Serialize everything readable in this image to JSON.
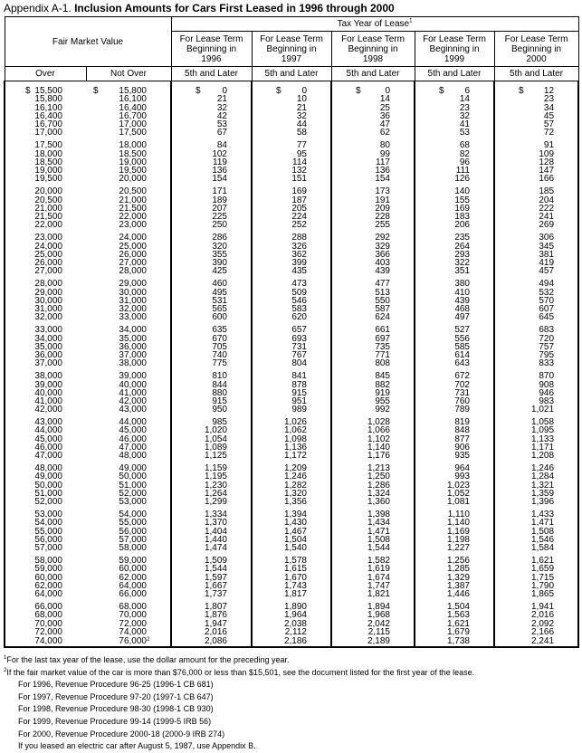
{
  "title": {
    "prefix": "Appendix A-1.",
    "main": "Inclusion Amounts for Cars First Leased in 1996 through 2000"
  },
  "header": {
    "fmv": "Fair Market Value",
    "tax_year": "Tax Year of Lease",
    "tax_year_note": "1",
    "over": "Over",
    "not_over": "Not Over",
    "columns": [
      {
        "line1": "For Lease Term",
        "line2": "Beginning in",
        "year": "1996",
        "sub": "5th and Later"
      },
      {
        "line1": "For Lease Term",
        "line2": "Beginning in",
        "year": "1997",
        "sub": "5th and Later"
      },
      {
        "line1": "For Lease Term",
        "line2": "Beginning in",
        "year": "1998",
        "sub": "5th and Later"
      },
      {
        "line1": "For Lease Term",
        "line2": "Beginning in",
        "year": "1999",
        "sub": "5th and Later"
      },
      {
        "line1": "For Lease Term",
        "line2": "Beginning in",
        "year": "2000",
        "sub": "5th and Later"
      }
    ]
  },
  "currency_symbol": "$",
  "last_row_note": "2",
  "groups": [
    [
      [
        "15,500",
        "15,800",
        "0",
        "0",
        "0",
        "6",
        "12"
      ],
      [
        "15,800",
        "16,100",
        "21",
        "10",
        "14",
        "14",
        "23"
      ],
      [
        "16,100",
        "16,400",
        "32",
        "21",
        "25",
        "23",
        "34"
      ],
      [
        "16,400",
        "16,700",
        "42",
        "32",
        "36",
        "32",
        "45"
      ],
      [
        "16,700",
        "17,000",
        "53",
        "44",
        "47",
        "41",
        "57"
      ],
      [
        "17,000",
        "17,500",
        "67",
        "58",
        "62",
        "53",
        "72"
      ]
    ],
    [
      [
        "17,500",
        "18,000",
        "84",
        "77",
        "80",
        "68",
        "91"
      ],
      [
        "18,000",
        "18,500",
        "102",
        "95",
        "99",
        "82",
        "109"
      ],
      [
        "18,500",
        "19,000",
        "119",
        "114",
        "117",
        "96",
        "128"
      ],
      [
        "19,000",
        "19,500",
        "136",
        "132",
        "136",
        "111",
        "147"
      ],
      [
        "19,500",
        "20,000",
        "154",
        "151",
        "154",
        "126",
        "166"
      ]
    ],
    [
      [
        "20,000",
        "20,500",
        "171",
        "169",
        "173",
        "140",
        "185"
      ],
      [
        "20,500",
        "21,000",
        "189",
        "187",
        "191",
        "155",
        "204"
      ],
      [
        "21,000",
        "21,500",
        "207",
        "205",
        "209",
        "169",
        "222"
      ],
      [
        "21,500",
        "22,000",
        "225",
        "224",
        "228",
        "183",
        "241"
      ],
      [
        "22,000",
        "23,000",
        "250",
        "252",
        "255",
        "206",
        "269"
      ]
    ],
    [
      [
        "23,000",
        "24,000",
        "286",
        "288",
        "292",
        "235",
        "306"
      ],
      [
        "24,000",
        "25,000",
        "320",
        "326",
        "329",
        "264",
        "345"
      ],
      [
        "25,000",
        "26,000",
        "355",
        "362",
        "366",
        "293",
        "381"
      ],
      [
        "26,000",
        "27,000",
        "390",
        "399",
        "403",
        "322",
        "419"
      ],
      [
        "27,000",
        "28,000",
        "425",
        "435",
        "439",
        "351",
        "457"
      ]
    ],
    [
      [
        "28,000",
        "29,000",
        "460",
        "473",
        "477",
        "380",
        "494"
      ],
      [
        "29,000",
        "30,000",
        "495",
        "509",
        "513",
        "410",
        "532"
      ],
      [
        "30,000",
        "31,000",
        "531",
        "546",
        "550",
        "439",
        "570"
      ],
      [
        "31,000",
        "32,000",
        "565",
        "583",
        "587",
        "468",
        "607"
      ],
      [
        "32,000",
        "33,000",
        "600",
        "620",
        "624",
        "497",
        "645"
      ]
    ],
    [
      [
        "33,000",
        "34,000",
        "635",
        "657",
        "661",
        "527",
        "683"
      ],
      [
        "34,000",
        "35,000",
        "670",
        "693",
        "697",
        "556",
        "720"
      ],
      [
        "35,000",
        "36,000",
        "705",
        "731",
        "735",
        "585",
        "757"
      ],
      [
        "36,000",
        "37,000",
        "740",
        "767",
        "771",
        "614",
        "795"
      ],
      [
        "37,000",
        "38,000",
        "775",
        "804",
        "808",
        "643",
        "833"
      ]
    ],
    [
      [
        "38,000",
        "39,000",
        "810",
        "841",
        "845",
        "672",
        "870"
      ],
      [
        "39,000",
        "40,000",
        "844",
        "878",
        "882",
        "702",
        "908"
      ],
      [
        "40,000",
        "41,000",
        "880",
        "915",
        "919",
        "731",
        "946"
      ],
      [
        "41,000",
        "42,000",
        "915",
        "951",
        "955",
        "760",
        "983"
      ],
      [
        "42,000",
        "43,000",
        "950",
        "989",
        "992",
        "789",
        "1,021"
      ]
    ],
    [
      [
        "43,000",
        "44,000",
        "985",
        "1,026",
        "1,028",
        "819",
        "1,058"
      ],
      [
        "44,000",
        "45,000",
        "1,020",
        "1,062",
        "1,066",
        "848",
        "1,095"
      ],
      [
        "45,000",
        "46,000",
        "1,054",
        "1,098",
        "1,102",
        "877",
        "1,133"
      ],
      [
        "46,000",
        "47,000",
        "1,089",
        "1,136",
        "1,140",
        "906",
        "1,171"
      ],
      [
        "47,000",
        "48,000",
        "1,125",
        "1,172",
        "1,176",
        "935",
        "1,208"
      ]
    ],
    [
      [
        "48,000",
        "49,000",
        "1,159",
        "1,209",
        "1,213",
        "964",
        "1,246"
      ],
      [
        "49,000",
        "50,000",
        "1,195",
        "1,246",
        "1,250",
        "993",
        "1,284"
      ],
      [
        "50,000",
        "51,000",
        "1,230",
        "1,282",
        "1,286",
        "1,023",
        "1,321"
      ],
      [
        "51,000",
        "52,000",
        "1,264",
        "1,320",
        "1,324",
        "1,052",
        "1,359"
      ],
      [
        "52,000",
        "53,000",
        "1,299",
        "1,356",
        "1,360",
        "1,081",
        "1,396"
      ]
    ],
    [
      [
        "53,000",
        "54,000",
        "1,334",
        "1,394",
        "1,398",
        "1,110",
        "1,433"
      ],
      [
        "54,000",
        "55,000",
        "1,370",
        "1,430",
        "1,434",
        "1,140",
        "1,471"
      ],
      [
        "55,000",
        "56,000",
        "1,404",
        "1,467",
        "1,471",
        "1,169",
        "1,508"
      ],
      [
        "56,000",
        "57,000",
        "1,440",
        "1,504",
        "1,508",
        "1,198",
        "1,546"
      ],
      [
        "57,000",
        "58,000",
        "1,474",
        "1,540",
        "1,544",
        "1,227",
        "1,584"
      ]
    ],
    [
      [
        "58,000",
        "59,000",
        "1,509",
        "1,578",
        "1,582",
        "1,256",
        "1,621"
      ],
      [
        "59,000",
        "60,000",
        "1,544",
        "1,615",
        "1,619",
        "1,285",
        "1,659"
      ],
      [
        "60,000",
        "62,000",
        "1,597",
        "1,670",
        "1,674",
        "1,329",
        "1,715"
      ],
      [
        "62,000",
        "64,000",
        "1,667",
        "1,743",
        "1,747",
        "1,387",
        "1,790"
      ],
      [
        "64,000",
        "66,000",
        "1,737",
        "1,817",
        "1,821",
        "1,446",
        "1,865"
      ]
    ],
    [
      [
        "66,000",
        "68,000",
        "1,807",
        "1,890",
        "1,894",
        "1,504",
        "1,941"
      ],
      [
        "68,000",
        "70,000",
        "1,876",
        "1,964",
        "1,968",
        "1,563",
        "2,016"
      ],
      [
        "70,000",
        "72,000",
        "1,947",
        "2,038",
        "2,042",
        "1,621",
        "2,092"
      ],
      [
        "72,000",
        "74,000",
        "2,016",
        "2,112",
        "2,115",
        "1,679",
        "2,166"
      ],
      [
        "74,000",
        "76,000",
        "2,086",
        "2,186",
        "2,189",
        "1,738",
        "2,241"
      ]
    ]
  ],
  "notes": {
    "n1_marker": "1",
    "n1": "For the last tax year of the lease, use the dollar amount for the preceding year.",
    "n2_marker": "2",
    "n2": "If the fair market value of the car is more than $76,000 or less than $15,501, see the document listed for the first year of the lease.",
    "refs": [
      "For 1996, Revenue Procedure 96-25 (1996-1 CB 681)",
      "For 1997, Revenue Procedure 97-20 (1997-1 CB 647)",
      "For 1998, Revenue Procedure 98-30 (1998-1 CB 930)",
      "For 1999, Revenue Procedure 99-14 (1999-5 IRB 56)",
      "For 2000, Revenue Procedure 2000-18 (2000-9 IRB 274)",
      "If you leased an electric car after August 5, 1987, use Appendix B."
    ]
  }
}
